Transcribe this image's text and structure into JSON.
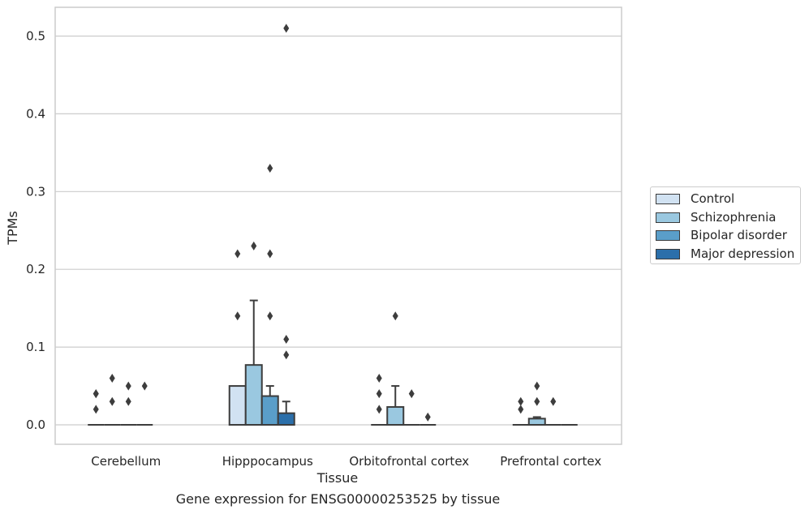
{
  "chart_data": {
    "type": "box",
    "title": "",
    "caption": "Gene expression for ENSG00000253525 by tissue",
    "xlabel": "Tissue",
    "ylabel": "TPMs",
    "ylim": [
      -0.025,
      0.537
    ],
    "yticks": [
      0.0,
      0.1,
      0.2,
      0.3,
      0.4,
      0.5
    ],
    "ytick_labels": [
      "0.0",
      "0.1",
      "0.2",
      "0.3",
      "0.4",
      "0.5"
    ],
    "grid": true,
    "legend_position": "right",
    "categories": [
      "Cerebellum",
      "Hipppocampus",
      "Orbitofrontal cortex",
      "Prefrontal cortex"
    ],
    "series": [
      {
        "name": "Control",
        "color": "#d1e2f2",
        "boxes": [
          {
            "q1": 0,
            "median": 0,
            "q3": 0,
            "whisker_low": 0,
            "whisker_high": 0,
            "outliers": [
              0.02,
              0.04,
              0.04
            ]
          },
          {
            "q1": 0,
            "median": 0,
            "q3": 0.05,
            "whisker_low": 0,
            "whisker_high": 0.05,
            "outliers": [
              0.14,
              0.22
            ]
          },
          {
            "q1": 0,
            "median": 0,
            "q3": 0,
            "whisker_low": 0,
            "whisker_high": 0,
            "outliers": [
              0.02,
              0.04,
              0.06
            ]
          },
          {
            "q1": 0,
            "median": 0,
            "q3": 0,
            "whisker_low": 0,
            "whisker_high": 0,
            "outliers": [
              0.02,
              0.03
            ]
          }
        ]
      },
      {
        "name": "Schizophrenia",
        "color": "#9ac8e0",
        "boxes": [
          {
            "q1": 0,
            "median": 0,
            "q3": 0,
            "whisker_low": 0,
            "whisker_high": 0,
            "outliers": [
              0.03,
              0.06
            ]
          },
          {
            "q1": 0,
            "median": 0,
            "q3": 0.077,
            "whisker_low": 0,
            "whisker_high": 0.16,
            "outliers": [
              0.23
            ]
          },
          {
            "q1": 0,
            "median": 0,
            "q3": 0.023,
            "whisker_low": 0,
            "whisker_high": 0.05,
            "outliers": [
              0.14
            ]
          },
          {
            "q1": 0,
            "median": 0,
            "q3": 0.008,
            "whisker_low": 0,
            "whisker_high": 0.01,
            "outliers": [
              0.03,
              0.05
            ]
          }
        ]
      },
      {
        "name": "Bipolar disorder",
        "color": "#5a9ec9",
        "boxes": [
          {
            "q1": 0,
            "median": 0,
            "q3": 0,
            "whisker_low": 0,
            "whisker_high": 0,
            "outliers": [
              0.03,
              0.05
            ]
          },
          {
            "q1": 0,
            "median": 0,
            "q3": 0.037,
            "whisker_low": 0,
            "whisker_high": 0.05,
            "outliers": [
              0.14,
              0.22,
              0.33
            ]
          },
          {
            "q1": 0,
            "median": 0,
            "q3": 0,
            "whisker_low": 0,
            "whisker_high": 0,
            "outliers": [
              0.04
            ]
          },
          {
            "q1": 0,
            "median": 0,
            "q3": 0,
            "whisker_low": 0,
            "whisker_high": 0,
            "outliers": [
              0.03
            ]
          }
        ]
      },
      {
        "name": "Major depression",
        "color": "#2b6faa",
        "boxes": [
          {
            "q1": 0,
            "median": 0,
            "q3": 0,
            "whisker_low": 0,
            "whisker_high": 0,
            "outliers": [
              0.05
            ]
          },
          {
            "q1": 0,
            "median": 0,
            "q3": 0.015,
            "whisker_low": 0,
            "whisker_high": 0.03,
            "outliers": [
              0.09,
              0.11,
              0.51
            ]
          },
          {
            "q1": 0,
            "median": 0,
            "q3": 0,
            "whisker_low": 0,
            "whisker_high": 0,
            "outliers": [
              0.01
            ]
          },
          {
            "q1": 0,
            "median": 0,
            "q3": 0,
            "whisker_low": 0,
            "whisker_high": 0,
            "outliers": []
          }
        ]
      }
    ]
  }
}
